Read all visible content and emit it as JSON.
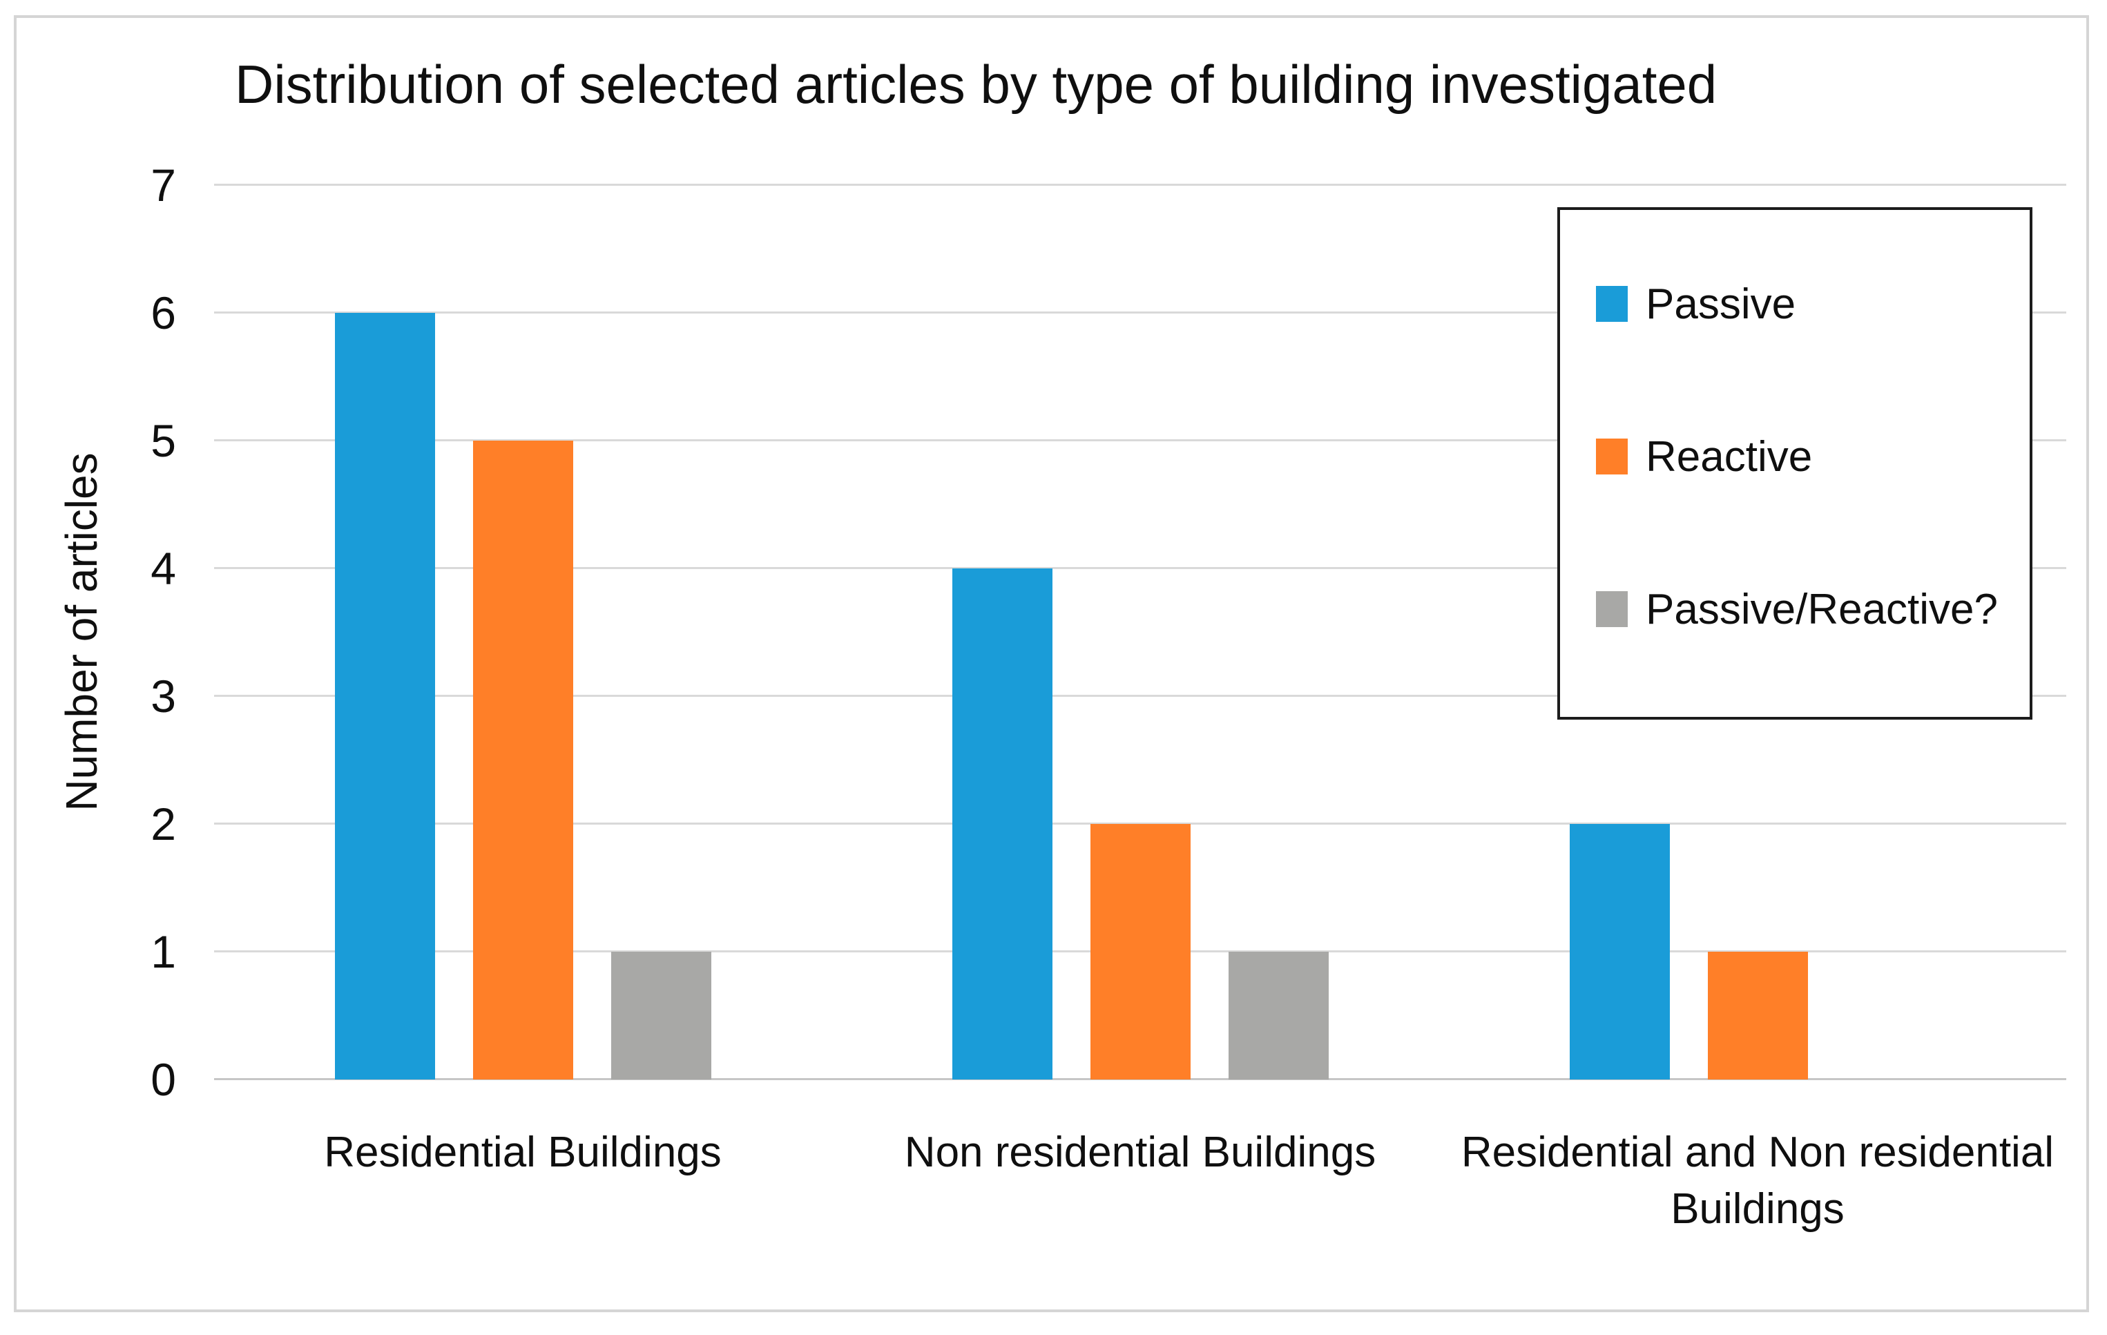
{
  "chart_data": {
    "type": "bar",
    "title": "Distribution of selected articles by type of building investigated",
    "xlabel": "",
    "ylabel": "Number of articles",
    "categories": [
      "Residential Buildings",
      "Non residential Buildings",
      "Residential and Non residential Buildings"
    ],
    "series": [
      {
        "name": "Passive",
        "color": "#1A9CD8",
        "values": [
          6,
          4,
          2
        ]
      },
      {
        "name": "Reactive",
        "color": "#FF7F28",
        "values": [
          5,
          2,
          1
        ]
      },
      {
        "name": "Passive/Reactive?",
        "color": "#A8A8A6",
        "values": [
          1,
          1,
          0
        ]
      }
    ],
    "ylim": [
      0,
      7
    ],
    "yticks": [
      0,
      1,
      2,
      3,
      4,
      5,
      6,
      7
    ],
    "grid": true,
    "legend_position": "upper right"
  },
  "colors": {
    "gridline": "#d9d9d9",
    "axis_line": "#c6c6c6",
    "frame_border": "#d5d5d5",
    "legend_border": "#1c1c1c",
    "text": "#0f0f0f"
  }
}
